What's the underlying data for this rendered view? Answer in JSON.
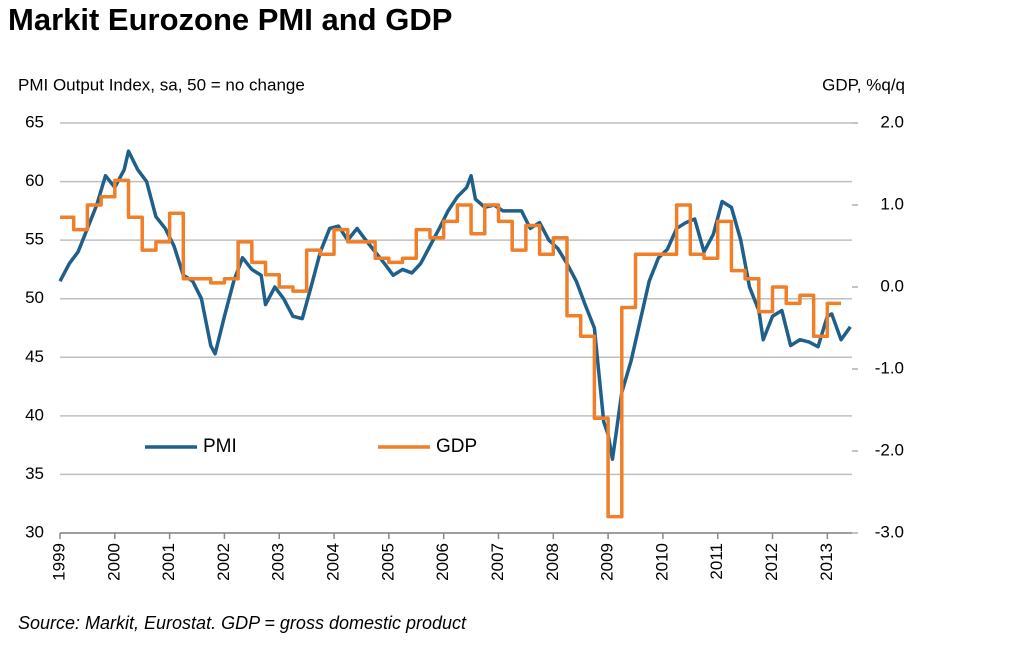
{
  "chart_data": {
    "type": "line",
    "title": "Markit Eurozone PMI and GDP",
    "y_label": "PMI Output Index, sa, 50 = no change",
    "y2_label": "GDP, %q/q",
    "source": "Source: Markit, Eurostat. GDP = gross domestic product",
    "xlim": [
      1999,
      2013.45
    ],
    "xticks": [
      1999,
      2000,
      2001,
      2002,
      2003,
      2004,
      2005,
      2006,
      2007,
      2008,
      2009,
      2010,
      2011,
      2012,
      2013
    ],
    "ylim": [
      30,
      65
    ],
    "yticks": [
      30,
      35,
      40,
      45,
      50,
      55,
      60,
      65
    ],
    "y2lim": [
      -3,
      2
    ],
    "y2ticks": [
      {
        "value": -3,
        "label": "-3.0"
      },
      {
        "value": -2,
        "label": "-2.0"
      },
      {
        "value": -1,
        "label": "-1.0"
      },
      {
        "value": 0,
        "label": "0.0"
      },
      {
        "value": 1,
        "label": "1.0"
      },
      {
        "value": 2,
        "label": "2.0"
      }
    ],
    "grid": true,
    "legend": "lower-left",
    "series": [
      {
        "name": "PMI",
        "color": "#1f5f8b",
        "step": false,
        "x": [
          1999.0,
          1999.17,
          1999.33,
          1999.5,
          1999.67,
          1999.83,
          2000.0,
          2000.17,
          2000.25,
          2000.42,
          2000.58,
          2000.75,
          2000.92,
          2001.08,
          2001.25,
          2001.42,
          2001.58,
          2001.75,
          2001.83,
          2002.0,
          2002.17,
          2002.33,
          2002.5,
          2002.67,
          2002.75,
          2002.92,
          2003.08,
          2003.25,
          2003.42,
          2003.58,
          2003.75,
          2003.92,
          2004.08,
          2004.25,
          2004.42,
          2004.58,
          2004.75,
          2004.92,
          2005.08,
          2005.25,
          2005.42,
          2005.58,
          2005.75,
          2005.92,
          2006.08,
          2006.25,
          2006.42,
          2006.5,
          2006.58,
          2006.75,
          2006.92,
          2007.08,
          2007.25,
          2007.42,
          2007.58,
          2007.75,
          2007.92,
          2008.08,
          2008.25,
          2008.42,
          2008.58,
          2008.75,
          2008.92,
          2009.0,
          2009.08,
          2009.25,
          2009.42,
          2009.58,
          2009.75,
          2009.92,
          2010.08,
          2010.25,
          2010.42,
          2010.58,
          2010.75,
          2010.92,
          2011.08,
          2011.25,
          2011.42,
          2011.58,
          2011.75,
          2011.83,
          2012.0,
          2012.17,
          2012.33,
          2012.5,
          2012.67,
          2012.83,
          2013.0,
          2013.08,
          2013.25,
          2013.42
        ],
        "values": [
          51.5,
          53,
          54,
          56,
          58,
          60.5,
          59.5,
          61,
          62.6,
          61,
          60,
          57,
          56,
          54.5,
          52,
          51.5,
          50,
          46,
          45.3,
          48.5,
          51.5,
          53.5,
          52.5,
          52,
          49.5,
          51,
          50,
          48.5,
          48.3,
          51,
          54,
          56,
          56.2,
          55,
          56,
          55,
          54,
          53,
          52,
          52.5,
          52.2,
          53,
          54.5,
          56,
          57.5,
          58.7,
          59.5,
          60.5,
          58.5,
          57.8,
          58,
          57.5,
          57.5,
          57.5,
          56,
          56.5,
          55,
          54.3,
          53,
          51.5,
          49.5,
          47.5,
          39.5,
          38.4,
          36.3,
          42,
          44.7,
          48,
          51.5,
          53.5,
          54.2,
          56,
          56.5,
          56.8,
          54,
          55.5,
          58.3,
          57.8,
          55,
          51,
          49,
          46.5,
          48.5,
          49,
          46,
          46.5,
          46.3,
          45.9,
          48.5,
          48.7,
          46.5,
          47.6
        ]
      },
      {
        "name": "GDP",
        "color": "#f07f2a",
        "axis": "y2",
        "step": true,
        "x": [
          1999.0,
          1999.25,
          1999.5,
          1999.75,
          2000.0,
          2000.25,
          2000.5,
          2000.75,
          2001.0,
          2001.25,
          2001.5,
          2001.75,
          2002.0,
          2002.25,
          2002.5,
          2002.75,
          2003.0,
          2003.25,
          2003.5,
          2003.75,
          2004.0,
          2004.25,
          2004.5,
          2004.75,
          2005.0,
          2005.25,
          2005.5,
          2005.75,
          2006.0,
          2006.25,
          2006.5,
          2006.75,
          2007.0,
          2007.25,
          2007.5,
          2007.75,
          2008.0,
          2008.25,
          2008.5,
          2008.75,
          2009.0,
          2009.25,
          2009.5,
          2009.75,
          2010.0,
          2010.25,
          2010.5,
          2010.75,
          2011.0,
          2011.25,
          2011.5,
          2011.75,
          2012.0,
          2012.25,
          2012.5,
          2012.75,
          2013.0
        ],
        "values": [
          0.85,
          0.7,
          1.0,
          1.1,
          1.3,
          0.85,
          0.45,
          0.55,
          0.9,
          0.1,
          0.1,
          0.05,
          0.1,
          0.55,
          0.3,
          0.15,
          0.0,
          -0.05,
          0.45,
          0.4,
          0.7,
          0.55,
          0.55,
          0.35,
          0.3,
          0.35,
          0.7,
          0.6,
          0.8,
          1.0,
          0.65,
          1.0,
          0.8,
          0.45,
          0.75,
          0.4,
          0.6,
          -0.35,
          -0.6,
          -1.6,
          -2.8,
          -0.25,
          0.4,
          0.4,
          0.4,
          1.0,
          0.4,
          0.35,
          0.8,
          0.2,
          0.1,
          -0.3,
          0.0,
          -0.2,
          -0.1,
          -0.6,
          -0.2
        ]
      }
    ]
  }
}
